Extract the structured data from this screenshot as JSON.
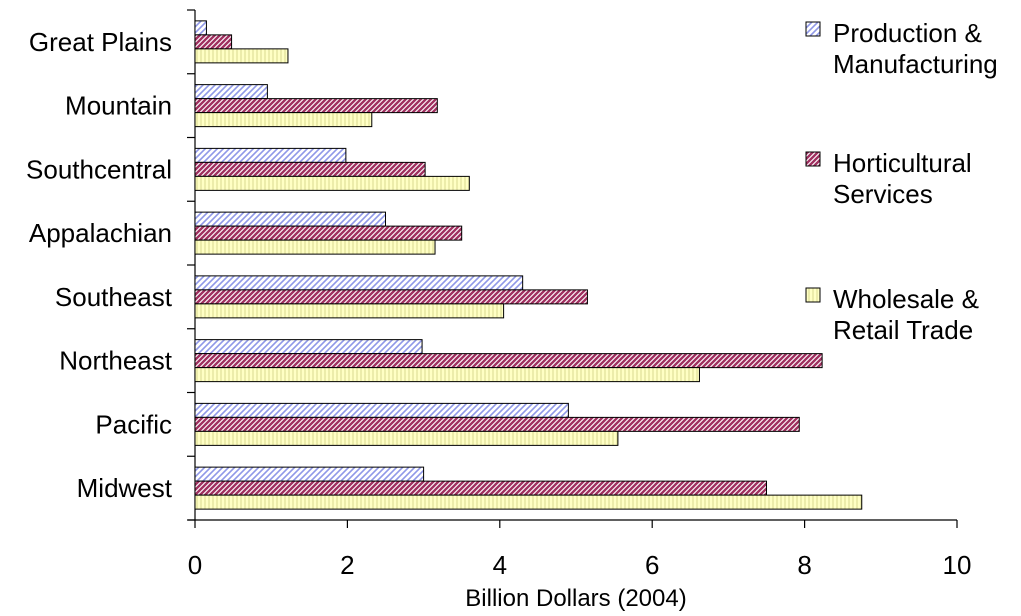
{
  "chart_data": {
    "type": "bar",
    "orientation": "horizontal",
    "categories": [
      "Great Plains",
      "Mountain",
      "Southcentral",
      "Appalachian",
      "Southeast",
      "Northeast",
      "Pacific",
      "Midwest"
    ],
    "series": [
      {
        "name": "Production & Manufacturing",
        "name_lines": [
          "Production &",
          "Manufacturing"
        ],
        "values": [
          0.15,
          0.95,
          1.98,
          2.5,
          4.3,
          2.98,
          4.9,
          3.0
        ],
        "color": "#b0b8f0",
        "pattern": "diagonal-hatch-light"
      },
      {
        "name": "Horticultural Services",
        "name_lines": [
          "Horticultural",
          "Services"
        ],
        "values": [
          0.48,
          3.18,
          3.02,
          3.5,
          5.15,
          8.23,
          7.93,
          7.5
        ],
        "color": "#a03060",
        "pattern": "diagonal-hatch-dense"
      },
      {
        "name": "Wholesale & Retail Trade",
        "name_lines": [
          "Wholesale &",
          "Retail Trade"
        ],
        "values": [
          1.22,
          2.32,
          3.6,
          3.15,
          4.05,
          6.62,
          5.55,
          8.75
        ],
        "color": "#ffffc0",
        "pattern": "vertical-lines"
      }
    ],
    "xlabel": "Billion Dollars (2004)",
    "xlim": [
      0,
      10
    ],
    "xticks": [
      "0",
      "2",
      "4",
      "6",
      "8",
      "10"
    ],
    "grid": false,
    "legend_position": "right"
  }
}
